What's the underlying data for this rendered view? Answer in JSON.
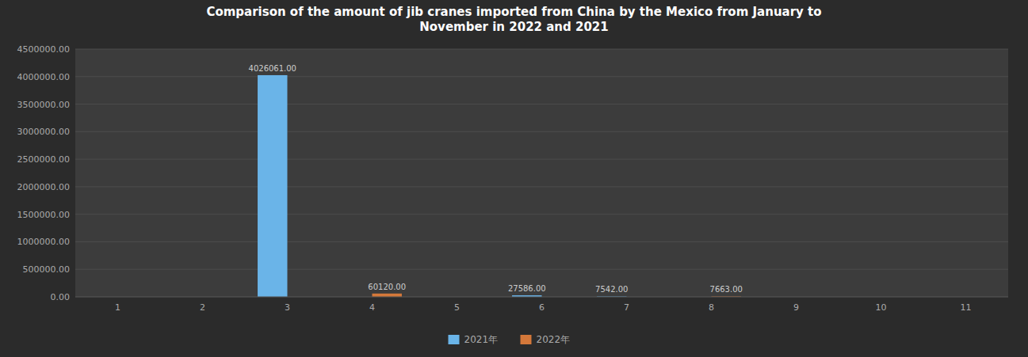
{
  "chart_data": {
    "type": "bar",
    "title": "Comparison of the amount of jib cranes imported from China by the Mexico from January to\nNovember in 2022 and 2021",
    "categories": [
      "1",
      "2",
      "3",
      "4",
      "5",
      "6",
      "7",
      "8",
      "9",
      "10",
      "11"
    ],
    "series": [
      {
        "name": "2021年",
        "color": "#6ab4e8",
        "values": [
          0,
          0,
          4026061,
          0,
          0,
          27586,
          7542,
          0,
          0,
          0,
          0
        ],
        "value_labels": [
          null,
          null,
          "4026061.00",
          null,
          null,
          "27586.00",
          "7542.00",
          null,
          null,
          null,
          null
        ]
      },
      {
        "name": "2022年",
        "color": "#d4783a",
        "values": [
          0,
          0,
          0,
          60120,
          0,
          0,
          0,
          7663,
          0,
          0,
          0
        ],
        "value_labels": [
          null,
          null,
          null,
          "60120.00",
          null,
          null,
          null,
          "7663.00",
          null,
          null,
          null
        ]
      }
    ],
    "ylim": [
      0,
      4500000
    ],
    "yticks": [
      {
        "value": 0,
        "label": "0.00"
      },
      {
        "value": 500000,
        "label": "500000.00"
      },
      {
        "value": 1000000,
        "label": "1000000.00"
      },
      {
        "value": 1500000,
        "label": "1500000.00"
      },
      {
        "value": 2000000,
        "label": "2000000.00"
      },
      {
        "value": 2500000,
        "label": "2500000.00"
      },
      {
        "value": 3000000,
        "label": "3000000.00"
      },
      {
        "value": 3500000,
        "label": "3500000.00"
      },
      {
        "value": 4000000,
        "label": "4000000.00"
      },
      {
        "value": 4500000,
        "label": "4500000.00"
      }
    ],
    "grid": true,
    "data_labels": true,
    "legend": "bottom"
  }
}
